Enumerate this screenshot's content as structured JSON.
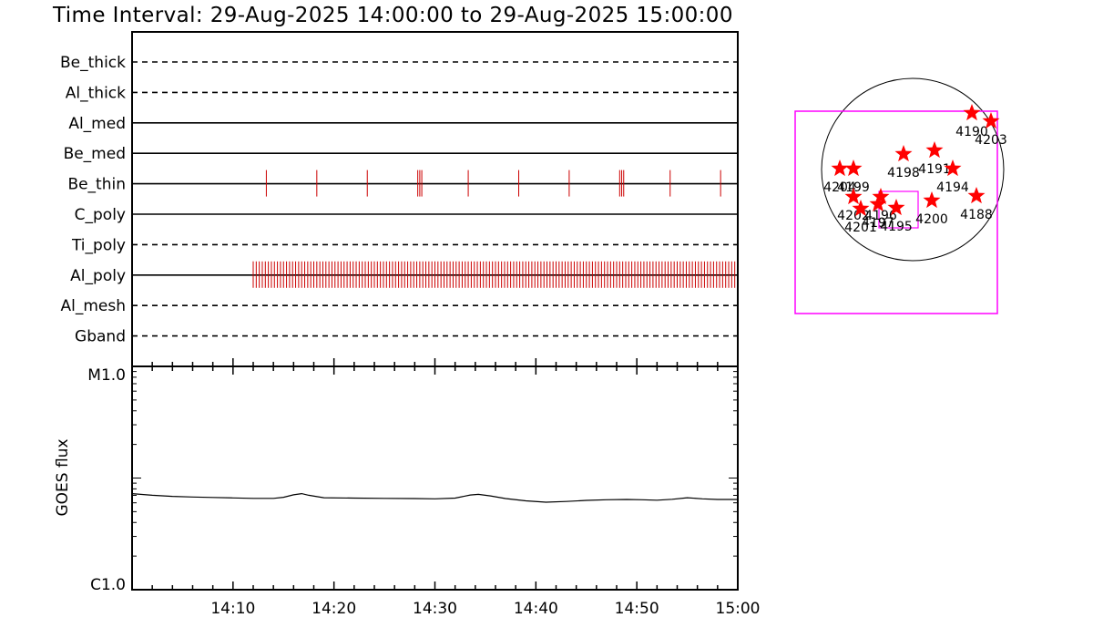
{
  "title": "Time Interval: 29-Aug-2025 14:00:00 to 29-Aug-2025 15:00:00",
  "chart_data": [
    {
      "type": "event-raster",
      "channels": [
        {
          "name": "Be_thick",
          "line": "dashed",
          "events": []
        },
        {
          "name": "Al_thick",
          "line": "dashed",
          "events": []
        },
        {
          "name": "Al_med",
          "line": "solid",
          "events": []
        },
        {
          "name": "Be_med",
          "line": "solid",
          "events": []
        },
        {
          "name": "Be_thin",
          "line": "solid",
          "events": [
            13.3,
            18.3,
            23.3,
            28.3,
            28.5,
            28.7,
            33.3,
            38.3,
            43.3,
            48.3,
            48.5,
            48.7,
            53.3,
            58.3
          ]
        },
        {
          "name": "C_poly",
          "line": "solid",
          "events": []
        },
        {
          "name": "Ti_poly",
          "line": "dashed",
          "events": []
        },
        {
          "name": "Al_poly",
          "line": "solid",
          "events_start": 12.0,
          "events_end": 59.9,
          "events_step": 0.3
        },
        {
          "name": "Al_mesh",
          "line": "dashed",
          "events": []
        },
        {
          "name": "Gband",
          "line": "dashed",
          "events": []
        }
      ],
      "event_color": "#cc0000"
    },
    {
      "type": "line",
      "ylabel": "GOES flux",
      "yticks": [
        "M1.0",
        "C1.0"
      ],
      "xlim_minutes": [
        0,
        60
      ],
      "x_ticks": [
        "14:10",
        "14:20",
        "14:30",
        "14:40",
        "14:50",
        "15:00"
      ],
      "x_minutes": [
        0,
        2,
        4,
        6,
        8,
        10,
        12,
        14,
        15,
        16,
        16.8,
        17.5,
        19,
        22,
        25,
        28,
        30,
        32,
        33.5,
        34.3,
        35.5,
        37,
        39,
        41,
        43,
        45,
        47,
        49,
        50.5,
        52,
        53.5,
        55,
        56.5,
        58,
        60
      ],
      "y_relative": [
        0.43,
        0.423,
        0.418,
        0.415,
        0.413,
        0.411,
        0.409,
        0.409,
        0.414,
        0.425,
        0.43,
        0.423,
        0.412,
        0.41,
        0.409,
        0.408,
        0.407,
        0.41,
        0.424,
        0.427,
        0.42,
        0.408,
        0.398,
        0.392,
        0.395,
        0.4,
        0.403,
        0.404,
        0.403,
        0.401,
        0.405,
        0.412,
        0.407,
        0.404,
        0.404
      ]
    },
    {
      "type": "map",
      "regions": [
        {
          "label": "4190",
          "x": 0.65,
          "y": 0.62
        },
        {
          "label": "4203",
          "x": 0.86,
          "y": 0.53
        },
        {
          "label": "4198",
          "x": -0.1,
          "y": 0.17
        },
        {
          "label": "4191",
          "x": 0.24,
          "y": 0.21
        },
        {
          "label": "4194",
          "x": 0.44,
          "y": 0.01
        },
        {
          "label": "4188",
          "x": 0.7,
          "y": -0.29
        },
        {
          "label": "4200",
          "x": 0.21,
          "y": -0.34
        },
        {
          "label": "4204",
          "x": -0.8,
          "y": 0.01
        },
        {
          "label": "4199",
          "x": -0.65,
          "y": 0.01
        },
        {
          "label": "4202",
          "x": -0.65,
          "y": -0.3
        },
        {
          "label": "4201",
          "x": -0.57,
          "y": -0.43
        },
        {
          "label": "4197",
          "x": -0.38,
          "y": -0.38
        },
        {
          "label": "4196",
          "x": -0.35,
          "y": -0.3
        },
        {
          "label": "4195",
          "x": -0.18,
          "y": -0.42
        }
      ],
      "fov_color": "#ff00ff",
      "marker_color": "#ff0000"
    }
  ]
}
